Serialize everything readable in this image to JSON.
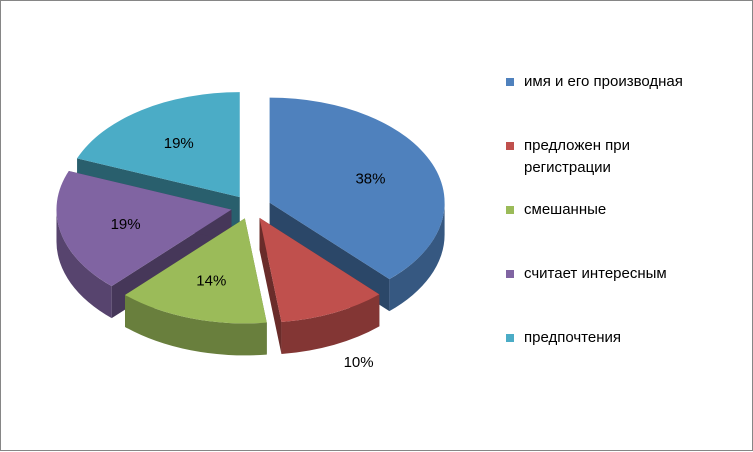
{
  "chart_data": {
    "type": "pie",
    "style": "exploded 3D pie",
    "categories": [
      "имя и его производная",
      "предложен при регистрации",
      "смешанные",
      "считает интересным",
      "предпочтения"
    ],
    "legend_lines": [
      [
        "имя и его производная"
      ],
      [
        "предложен при",
        "регистрации"
      ],
      [
        "смешанные"
      ],
      [
        "считает интересным"
      ],
      [
        "предпочтения"
      ]
    ],
    "values": [
      38,
      10,
      14,
      19,
      19
    ],
    "data_labels": [
      "38%",
      "10%",
      "14%",
      "19%",
      "19%"
    ],
    "colors": [
      "#4F81BD",
      "#C0504D",
      "#9BBB59",
      "#8064A2",
      "#4BACC6"
    ],
    "legend_position": "right",
    "title": ""
  }
}
